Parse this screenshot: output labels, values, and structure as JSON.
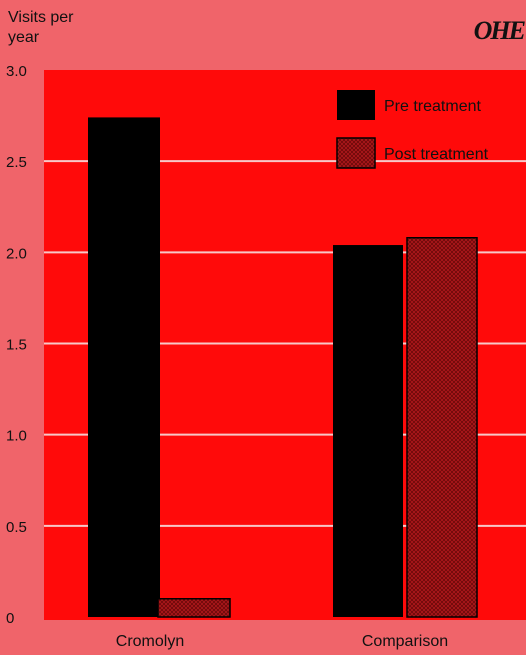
{
  "header": {
    "y_label_line1": "Visits per",
    "y_label_line2": "year",
    "logo_text": "OHE"
  },
  "colors": {
    "page_background": "#f0646a",
    "plot_background": "#ff0a0a",
    "pre_treatment": "#000000",
    "post_treatment": "#b0181c",
    "gridline": "#f7c8c8"
  },
  "chart_data": {
    "type": "bar",
    "title": "",
    "xlabel": "",
    "ylabel": "Visits per year",
    "categories": [
      "Cromolyn",
      "Comparison"
    ],
    "series": [
      {
        "name": "Pre treatment",
        "values": [
          2.74,
          2.04
        ],
        "color": "#000000",
        "pattern": "solid"
      },
      {
        "name": "Post treatment",
        "values": [
          0.1,
          2.08
        ],
        "color": "#b0181c",
        "pattern": "crosshatch"
      }
    ],
    "ylim": [
      0,
      3.0
    ],
    "yticks": [
      0,
      0.5,
      1.0,
      1.5,
      2.0,
      2.5,
      3.0
    ],
    "ytick_labels": [
      "0",
      "0.5",
      "1.0",
      "1.5",
      "2.0",
      "2.5",
      "3.0"
    ],
    "grid": true,
    "legend_position": "top-right"
  }
}
